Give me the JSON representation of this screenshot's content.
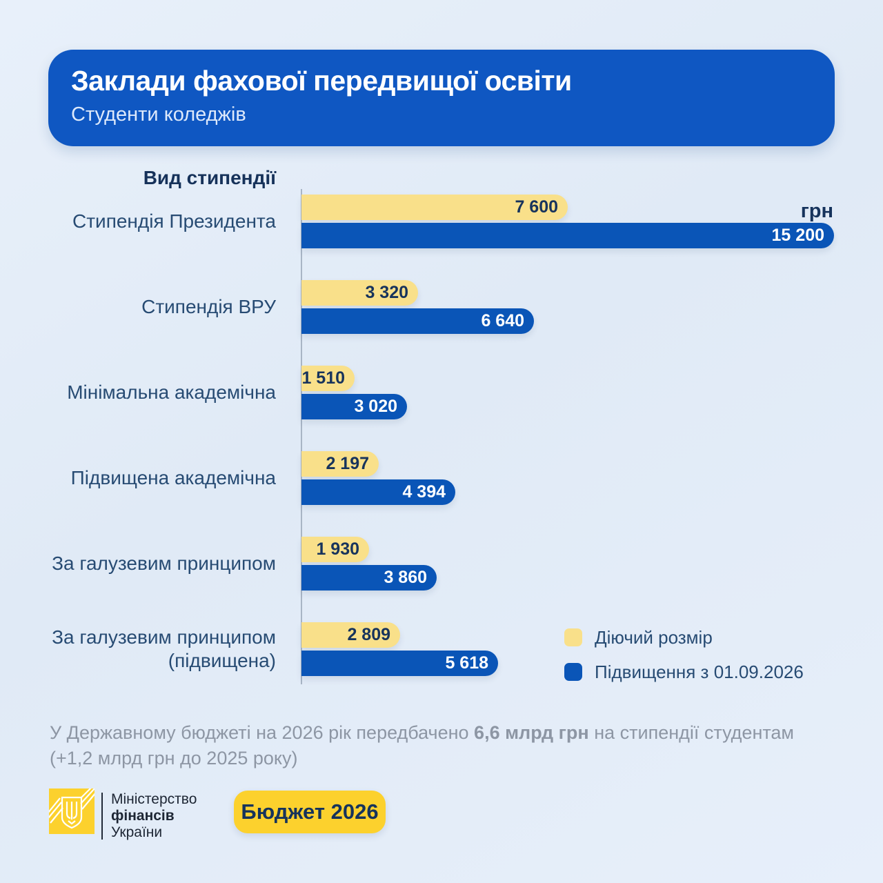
{
  "header": {
    "title": "Заклади фахової передвищої освіти",
    "subtitle": "Студенти коледжів"
  },
  "chart_data": {
    "type": "bar",
    "orientation": "horizontal",
    "title": "Вид стипендії",
    "unit_label": "грн",
    "xlim": [
      0,
      15200
    ],
    "grid": false,
    "legend_position": "bottom-right",
    "categories": [
      "Стипендія Президента",
      "Стипендія ВРУ",
      "Мінімальна академічна",
      "Підвищена академічна",
      "За галузевим принципом",
      "За галузевим принципом (підвищена)"
    ],
    "series": [
      {
        "name": "Діючий розмір",
        "color": "#f9e08a",
        "values": [
          7600,
          3320,
          1510,
          2197,
          1930,
          2809
        ],
        "labels": [
          "7 600",
          "3 320",
          "1 510",
          "2 197",
          "1 930",
          "2 809"
        ]
      },
      {
        "name": "Підвищення з 01.09.2026",
        "color": "#0a55b7",
        "values": [
          15200,
          6640,
          3020,
          4394,
          3860,
          5618
        ],
        "labels": [
          "15 200",
          "6 640",
          "3 020",
          "4 394",
          "3 860",
          "5 618"
        ]
      }
    ]
  },
  "footnote": {
    "before": "У Державному бюджеті на 2026 рік передбачено ",
    "bold": "6,6 млрд грн",
    "after": " на стипендії студентам",
    "line2": "(+1,2 млрд грн до 2025 року)"
  },
  "brand": {
    "line1": "Міністерство",
    "line2": "фінансів",
    "line3": "України",
    "button_label": "Бюджет 2026"
  },
  "colors": {
    "header_bg": "#0f57c2",
    "bar_yellow": "#f9e08a",
    "bar_blue": "#0a55b7",
    "accent_yellow": "#fcd12d",
    "text_navy": "#16335c",
    "text_gray": "#8d96a4",
    "background": "#e4edf8"
  }
}
